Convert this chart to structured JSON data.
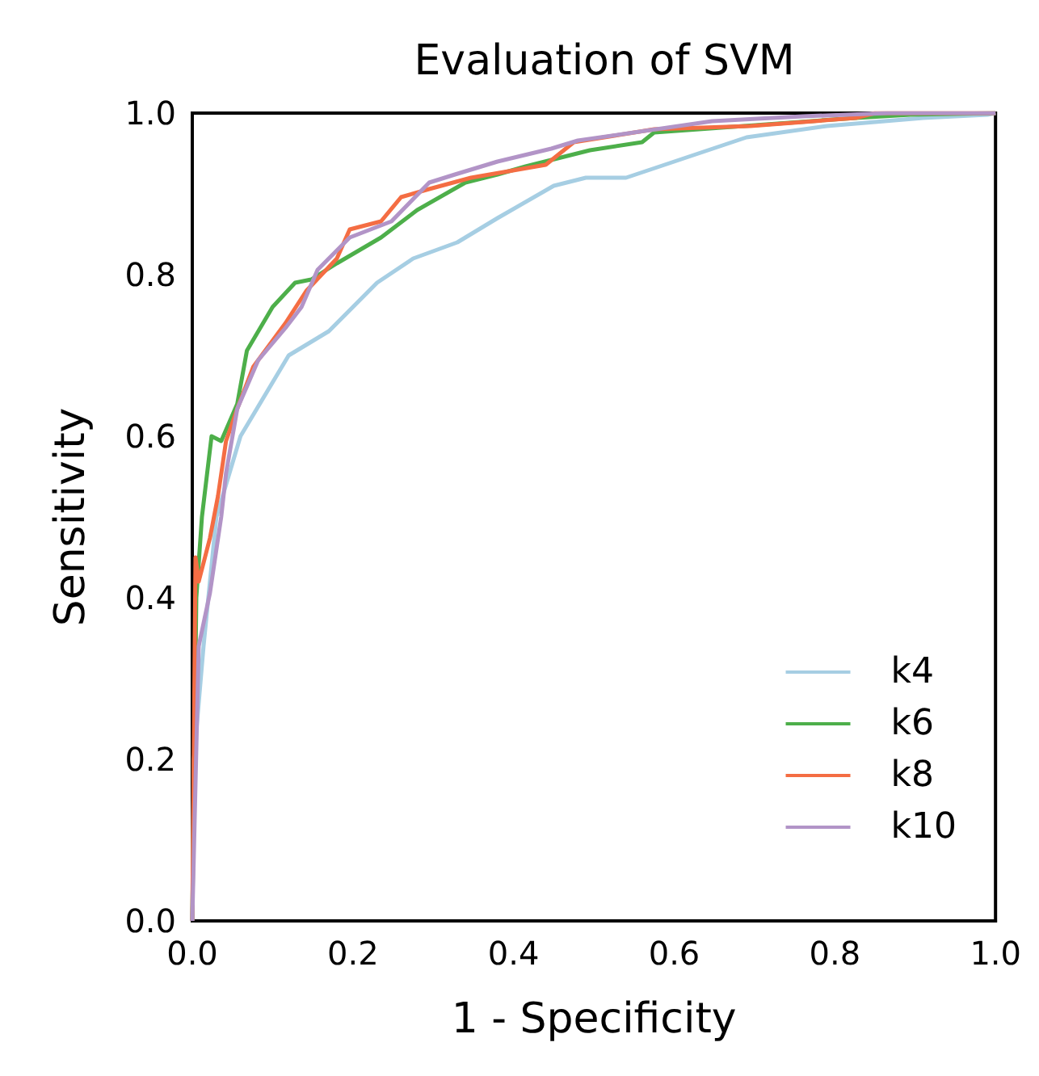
{
  "chart_data": {
    "type": "line",
    "title": "Evaluation of SVM",
    "xlabel": "1 - Specificity",
    "ylabel": "Sensitivity",
    "xlim": [
      0,
      1
    ],
    "ylim": [
      0,
      1
    ],
    "xticks": [
      {
        "value": 0,
        "label": "0.0"
      },
      {
        "value": 0.2,
        "label": "0.2"
      },
      {
        "value": 0.4,
        "label": "0.4"
      },
      {
        "value": 0.6,
        "label": "0.6"
      },
      {
        "value": 0.8,
        "label": "0.8"
      },
      {
        "value": 1,
        "label": "1.0"
      }
    ],
    "yticks": [
      {
        "value": 0,
        "label": "0.0"
      },
      {
        "value": 0.2,
        "label": "0.2"
      },
      {
        "value": 0.4,
        "label": "0.4"
      },
      {
        "value": 0.6,
        "label": "0.6"
      },
      {
        "value": 0.8,
        "label": "0.8"
      },
      {
        "value": 1,
        "label": "1.0"
      }
    ],
    "grid": false,
    "legend": "bottom right",
    "marker": "none",
    "line_style": "solid",
    "series": [
      {
        "name": "k4",
        "color": "#a6cee3",
        "x": [
          0,
          0.002,
          0.014,
          0.03,
          0.06,
          0.12,
          0.17,
          0.23,
          0.275,
          0.33,
          0.38,
          0.45,
          0.49,
          0.54,
          0.63,
          0.69,
          0.79,
          0.91,
          0.99,
          1
        ],
        "values": [
          0,
          0.2,
          0.34,
          0.5,
          0.6,
          0.7,
          0.73,
          0.79,
          0.82,
          0.84,
          0.87,
          0.91,
          0.92,
          0.92,
          0.95,
          0.97,
          0.984,
          0.994,
          0.998,
          1
        ]
      },
      {
        "name": "k6",
        "color": "#4daf4a",
        "x": [
          0,
          0.005,
          0.012,
          0.024,
          0.036,
          0.056,
          0.068,
          0.1,
          0.128,
          0.148,
          0.18,
          0.235,
          0.28,
          0.34,
          0.38,
          0.415,
          0.495,
          0.56,
          0.575,
          0.826,
          0.894,
          1
        ],
        "values": [
          0,
          0.4,
          0.5,
          0.6,
          0.594,
          0.64,
          0.706,
          0.76,
          0.79,
          0.794,
          0.814,
          0.846,
          0.88,
          0.914,
          0.924,
          0.934,
          0.954,
          0.964,
          0.976,
          0.994,
          0.998,
          1
        ]
      },
      {
        "name": "k8",
        "color": "#f46d43",
        "x": [
          0,
          0.004,
          0.008,
          0.022,
          0.032,
          0.042,
          0.056,
          0.076,
          0.116,
          0.142,
          0.18,
          0.196,
          0.235,
          0.26,
          0.295,
          0.347,
          0.44,
          0.475,
          0.575,
          0.695,
          0.826,
          0.85,
          1
        ],
        "values": [
          0,
          0.45,
          0.42,
          0.474,
          0.526,
          0.594,
          0.634,
          0.686,
          0.74,
          0.78,
          0.82,
          0.856,
          0.866,
          0.896,
          0.906,
          0.92,
          0.936,
          0.964,
          0.98,
          0.984,
          0.994,
          1,
          1
        ]
      },
      {
        "name": "k10",
        "color": "#b294c7",
        "x": [
          0,
          0.008,
          0.022,
          0.036,
          0.042,
          0.056,
          0.082,
          0.116,
          0.136,
          0.156,
          0.196,
          0.248,
          0.295,
          0.327,
          0.38,
          0.447,
          0.48,
          0.647,
          0.76,
          0.866,
          1
        ],
        "values": [
          0,
          0.34,
          0.406,
          0.5,
          0.554,
          0.634,
          0.694,
          0.734,
          0.76,
          0.806,
          0.846,
          0.866,
          0.914,
          0.924,
          0.94,
          0.956,
          0.966,
          0.99,
          0.996,
          1,
          1
        ]
      }
    ]
  }
}
